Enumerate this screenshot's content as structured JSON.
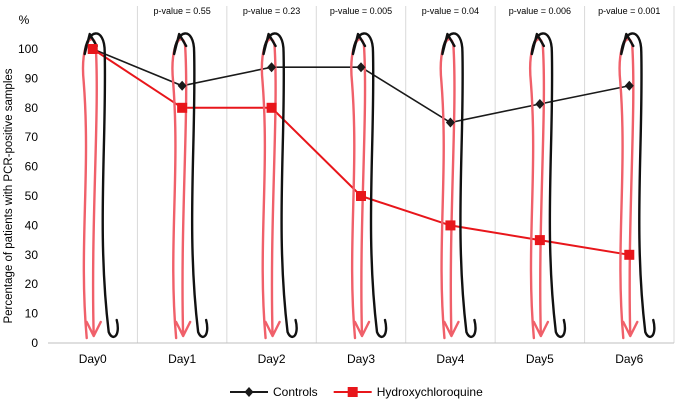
{
  "chart_data": {
    "type": "line",
    "title": "",
    "xlabel": "",
    "ylabel": "Percentage of patients with PCR-positive samples",
    "y_unit_label": "%",
    "ylim": [
      0,
      100
    ],
    "ytick_step": 10,
    "categories": [
      "Day0",
      "Day1",
      "Day2",
      "Day3",
      "Day4",
      "Day5",
      "Day6"
    ],
    "p_values": [
      "",
      "p-value = 0.55",
      "p-value = 0.23",
      "p-value = 0.005",
      "p-value = 0.04",
      "p-value = 0.006",
      "p-value = 0.001"
    ],
    "series": [
      {
        "name": "Controls",
        "values": [
          100,
          87.5,
          93.8,
          93.8,
          75,
          81.3,
          87.5
        ],
        "color": "#1a1a1a",
        "marker": "diamond"
      },
      {
        "name": "Hydroxychloroquine",
        "values": [
          100,
          80,
          80,
          50,
          40,
          35,
          30
        ],
        "color": "#e8161b",
        "marker": "square"
      }
    ],
    "grid": "vertical separators between days",
    "legend_position": "bottom",
    "annotations": "hand-drawn black and red arrows over each day"
  }
}
